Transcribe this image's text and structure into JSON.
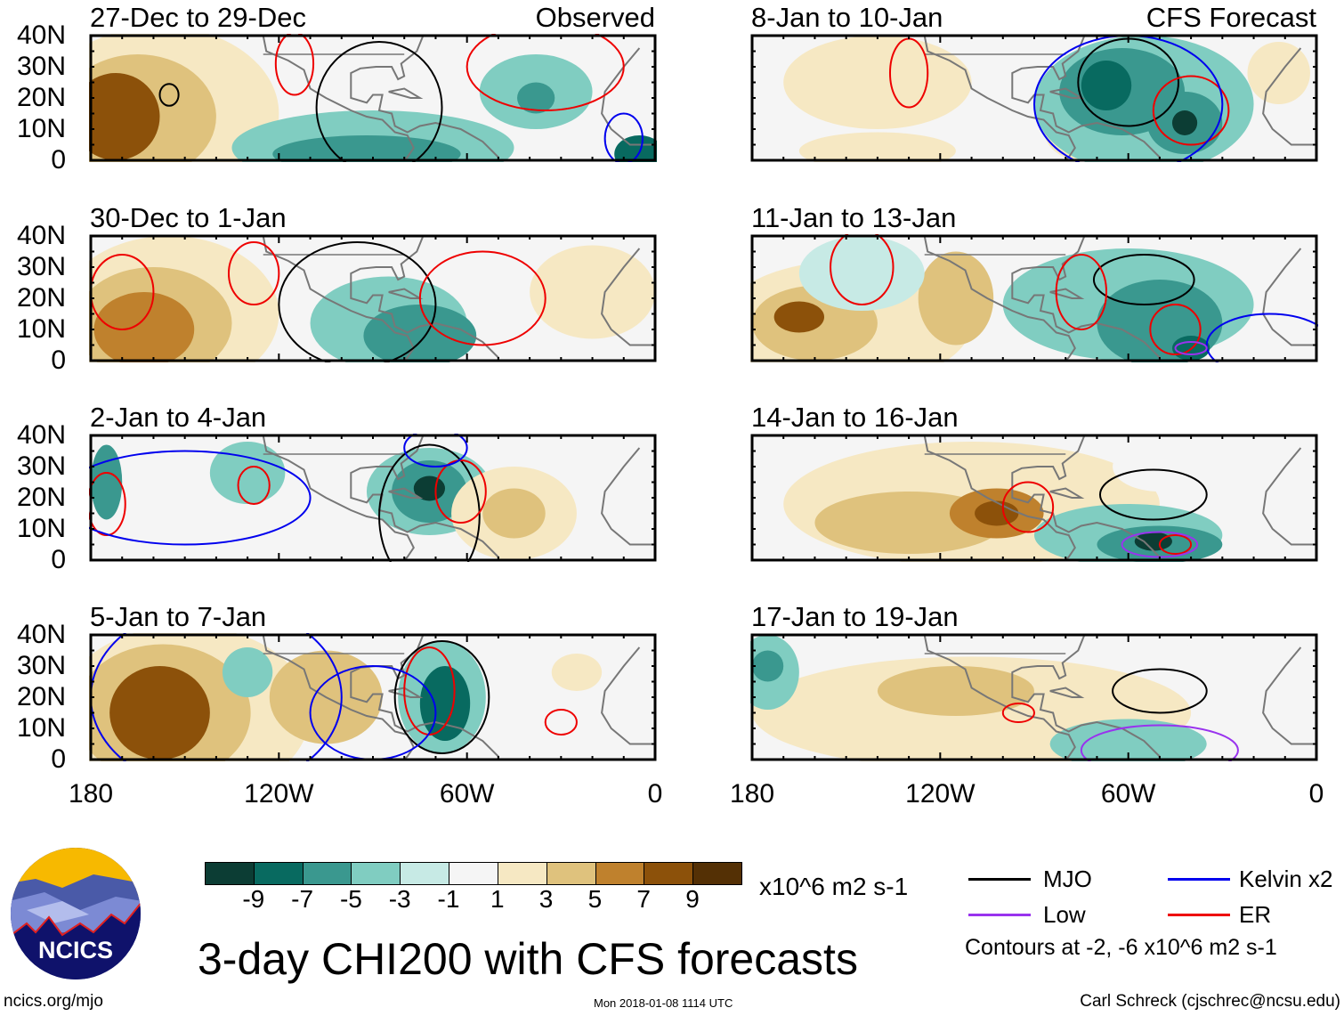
{
  "labels": {
    "observed": "Observed",
    "forecast": "CFS Forecast"
  },
  "y_ticks": [
    "40N",
    "30N",
    "20N",
    "10N",
    "0"
  ],
  "x_ticks": [
    "180",
    "120W",
    "60W",
    "0"
  ],
  "colors": {
    "levels": [
      -10,
      -8,
      -6,
      -4,
      -2,
      0,
      2,
      4,
      6,
      8,
      10
    ],
    "fills": [
      "#0c3d34",
      "#086a60",
      "#3a988f",
      "#80cdc1",
      "#c7eae5",
      "#f5f5f5",
      "#f6e8c3",
      "#dfc27d",
      "#bf812d",
      "#8c510a",
      "#543005"
    ],
    "MJO": "#000000",
    "Kelvin": "#0000ee",
    "Low": "#9933ee",
    "ER": "#ee0000"
  },
  "panels": [
    {
      "title": "27-Dec to 29-Dec",
      "anoms": [
        [
          -150,
          20,
          50,
          35,
          2
        ],
        [
          -158,
          15,
          38,
          28,
          4
        ],
        [
          -165,
          14,
          25,
          20,
          6
        ],
        [
          -172,
          14,
          14,
          14,
          9
        ],
        [
          -90,
          4,
          45,
          12,
          -2
        ],
        [
          -92,
          2,
          30,
          6,
          -4
        ],
        [
          -38,
          22,
          18,
          12,
          -2
        ],
        [
          -38,
          20,
          6,
          5,
          -4
        ],
        [
          -5,
          2,
          8,
          6,
          -6
        ]
      ],
      "contours": [
        [
          "MJO",
          -155,
          21,
          3,
          3.5
        ],
        [
          "MJO",
          -88,
          17,
          20,
          21
        ],
        [
          "ER",
          -115,
          31,
          6,
          10
        ],
        [
          "ER",
          -35,
          30,
          25,
          14
        ],
        [
          "Kelvin",
          -10,
          7,
          6,
          8
        ]
      ]
    },
    {
      "title": "8-Jan to 10-Jan",
      "anoms": [
        [
          -140,
          25,
          30,
          15,
          3
        ],
        [
          -140,
          3,
          25,
          6,
          4
        ],
        [
          -75,
          10,
          12,
          10,
          4
        ],
        [
          -55,
          18,
          35,
          22,
          -2
        ],
        [
          -62,
          22,
          20,
          14,
          -4
        ],
        [
          -67,
          24,
          8,
          8,
          -7
        ],
        [
          -42,
          12,
          12,
          10,
          -5
        ],
        [
          -42,
          12,
          4,
          4,
          -8
        ],
        [
          -12,
          28,
          10,
          10,
          3
        ]
      ],
      "contours": [
        [
          "MJO",
          -60,
          25,
          16,
          14
        ],
        [
          "ER",
          -130,
          28,
          6,
          11
        ],
        [
          "ER",
          -40,
          16,
          12,
          11
        ],
        [
          "Kelvin",
          -60,
          18,
          30,
          22
        ]
      ]
    },
    {
      "title": "30-Dec to 1-Jan",
      "anoms": [
        [
          -155,
          15,
          35,
          25,
          3
        ],
        [
          -160,
          12,
          25,
          18,
          5
        ],
        [
          -163,
          10,
          16,
          12,
          8
        ],
        [
          -85,
          12,
          25,
          15,
          -2
        ],
        [
          -75,
          8,
          18,
          10,
          -4
        ],
        [
          -20,
          22,
          20,
          15,
          3
        ],
        [
          -20,
          25,
          10,
          8,
          4
        ]
      ],
      "contours": [
        [
          "MJO",
          -95,
          18,
          25,
          20
        ],
        [
          "ER",
          -128,
          28,
          8,
          10
        ],
        [
          "ER",
          -55,
          20,
          20,
          15
        ],
        [
          "ER",
          -170,
          22,
          10,
          12
        ]
      ]
    },
    {
      "title": "11-Jan to 13-Jan",
      "anoms": [
        [
          -150,
          12,
          40,
          20,
          3
        ],
        [
          -160,
          12,
          20,
          12,
          6
        ],
        [
          -165,
          14,
          8,
          5,
          9
        ],
        [
          -115,
          20,
          12,
          15,
          5
        ],
        [
          -60,
          18,
          40,
          18,
          -2
        ],
        [
          -50,
          12,
          20,
          14,
          -4
        ],
        [
          -40,
          4,
          6,
          4,
          -7
        ],
        [
          -145,
          28,
          20,
          12,
          -1
        ]
      ],
      "contours": [
        [
          "MJO",
          -55,
          26,
          16,
          8
        ],
        [
          "ER",
          -145,
          30,
          10,
          12
        ],
        [
          "ER",
          -75,
          22,
          8,
          12
        ],
        [
          "ER",
          -45,
          10,
          8,
          8
        ],
        [
          "Kelvin",
          -15,
          5,
          20,
          10
        ],
        [
          "Low",
          -40,
          4,
          5,
          2
        ]
      ]
    },
    {
      "title": "2-Jan to 4-Jan",
      "anoms": [
        [
          -150,
          15,
          20,
          15,
          2
        ],
        [
          -130,
          28,
          12,
          10,
          -2
        ],
        [
          -72,
          22,
          20,
          14,
          -2
        ],
        [
          -72,
          22,
          12,
          10,
          -5
        ],
        [
          -72,
          23,
          5,
          4,
          -8
        ],
        [
          -45,
          15,
          20,
          15,
          3
        ],
        [
          -45,
          15,
          10,
          8,
          6
        ],
        [
          -175,
          25,
          5,
          12,
          -5
        ],
        [
          -105,
          5,
          20,
          8,
          2
        ]
      ],
      "contours": [
        [
          "MJO",
          -72,
          14,
          16,
          23
        ],
        [
          "ER",
          -62,
          22,
          8,
          10
        ],
        [
          "ER",
          -128,
          24,
          5,
          6
        ],
        [
          "ER",
          -175,
          18,
          6,
          10
        ],
        [
          "Kelvin",
          -150,
          20,
          40,
          15
        ],
        [
          "Kelvin",
          -70,
          36,
          10,
          6
        ]
      ]
    },
    {
      "title": "14-Jan to 16-Jan",
      "anoms": [
        [
          -110,
          18,
          60,
          20,
          3
        ],
        [
          -130,
          12,
          30,
          10,
          5
        ],
        [
          -102,
          15,
          15,
          8,
          7
        ],
        [
          -102,
          15,
          7,
          4,
          9
        ],
        [
          -60,
          8,
          30,
          10,
          -2
        ],
        [
          -50,
          5,
          20,
          6,
          -4
        ],
        [
          -52,
          6,
          6,
          3,
          -8
        ],
        [
          -50,
          30,
          15,
          8,
          2
        ]
      ],
      "contours": [
        [
          "MJO",
          -52,
          21,
          17,
          8
        ],
        [
          "ER",
          -92,
          17,
          8,
          8
        ],
        [
          "ER",
          -45,
          5,
          5,
          3
        ],
        [
          "Low",
          -50,
          5,
          12,
          4
        ]
      ]
    },
    {
      "title": "5-Jan to 7-Jan",
      "anoms": [
        [
          -150,
          15,
          40,
          28,
          4
        ],
        [
          -157,
          15,
          28,
          22,
          6
        ],
        [
          -158,
          15,
          16,
          15,
          9
        ],
        [
          -105,
          20,
          18,
          15,
          5
        ],
        [
          -68,
          20,
          14,
          18,
          -3
        ],
        [
          -67,
          18,
          8,
          12,
          -6
        ],
        [
          -130,
          28,
          8,
          8,
          -3
        ],
        [
          -45,
          12,
          8,
          6,
          2
        ],
        [
          -25,
          28,
          8,
          6,
          3
        ]
      ],
      "contours": [
        [
          "MJO",
          -68,
          20,
          15,
          18
        ],
        [
          "ER",
          -72,
          22,
          8,
          14
        ],
        [
          "ER",
          -30,
          12,
          5,
          4
        ],
        [
          "Kelvin",
          -140,
          20,
          40,
          30
        ],
        [
          "Kelvin",
          -90,
          15,
          20,
          15
        ]
      ]
    },
    {
      "title": "17-Jan to 19-Jan",
      "anoms": [
        [
          -110,
          15,
          70,
          18,
          3
        ],
        [
          -115,
          22,
          25,
          8,
          5
        ],
        [
          -175,
          28,
          10,
          12,
          -3
        ],
        [
          -175,
          30,
          5,
          5,
          -5
        ],
        [
          -60,
          5,
          25,
          8,
          -2
        ],
        [
          -30,
          30,
          15,
          10,
          2
        ]
      ],
      "contours": [
        [
          "MJO",
          -50,
          22,
          15,
          7
        ],
        [
          "ER",
          -95,
          15,
          5,
          3
        ],
        [
          "Low",
          -50,
          3,
          25,
          8
        ]
      ]
    }
  ],
  "colorbar": {
    "ticks": [
      "-9",
      "-7",
      "-5",
      "-3",
      "-1",
      "1",
      "3",
      "5",
      "7",
      "9"
    ],
    "units": "x10^6 m2 s-1"
  },
  "legend": {
    "mjo": "MJO",
    "kelvin": "Kelvin x2",
    "low": "Low",
    "er": "ER",
    "note": "Contours at -2, -6 x10^6 m2 s-1"
  },
  "title": "3-day CHI200 with CFS forecasts",
  "logo": "NCICS",
  "footer": {
    "left": "ncics.org/mjo",
    "center": "Mon 2018-01-08 1114 UTC",
    "right": "Carl Schreck (cjschrec@ncsu.edu)"
  }
}
